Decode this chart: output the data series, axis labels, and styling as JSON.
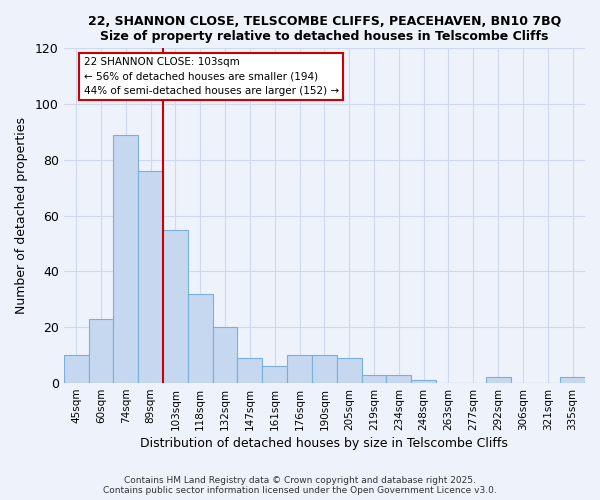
{
  "title1": "22, SHANNON CLOSE, TELSCOMBE CLIFFS, PEACEHAVEN, BN10 7BQ",
  "title2": "Size of property relative to detached houses in Telscombe Cliffs",
  "xlabel": "Distribution of detached houses by size in Telscombe Cliffs",
  "ylabel": "Number of detached properties",
  "categories": [
    "45sqm",
    "60sqm",
    "74sqm",
    "89sqm",
    "103sqm",
    "118sqm",
    "132sqm",
    "147sqm",
    "161sqm",
    "176sqm",
    "190sqm",
    "205sqm",
    "219sqm",
    "234sqm",
    "248sqm",
    "263sqm",
    "277sqm",
    "292sqm",
    "306sqm",
    "321sqm",
    "335sqm"
  ],
  "values": [
    10,
    23,
    89,
    76,
    55,
    32,
    20,
    9,
    6,
    10,
    10,
    9,
    3,
    3,
    1,
    0,
    0,
    2,
    0,
    0,
    2
  ],
  "bar_color": "#c5d8f0",
  "bar_edge_color": "#7aaedb",
  "vline_color": "#cc0000",
  "annotation_line1": "22 SHANNON CLOSE: 103sqm",
  "annotation_line2": "← 56% of detached houses are smaller (194)",
  "annotation_line3": "44% of semi-detached houses are larger (152) →",
  "annotation_box_color": "#ffffff",
  "annotation_box_edge": "#cc0000",
  "ylim": [
    0,
    120
  ],
  "yticks": [
    0,
    20,
    40,
    60,
    80,
    100,
    120
  ],
  "footnote1": "Contains HM Land Registry data © Crown copyright and database right 2025.",
  "footnote2": "Contains public sector information licensed under the Open Government Licence v3.0.",
  "bg_color": "#eef2fb",
  "plot_bg_color": "#eef2fb",
  "grid_color": "#d0d8ee"
}
